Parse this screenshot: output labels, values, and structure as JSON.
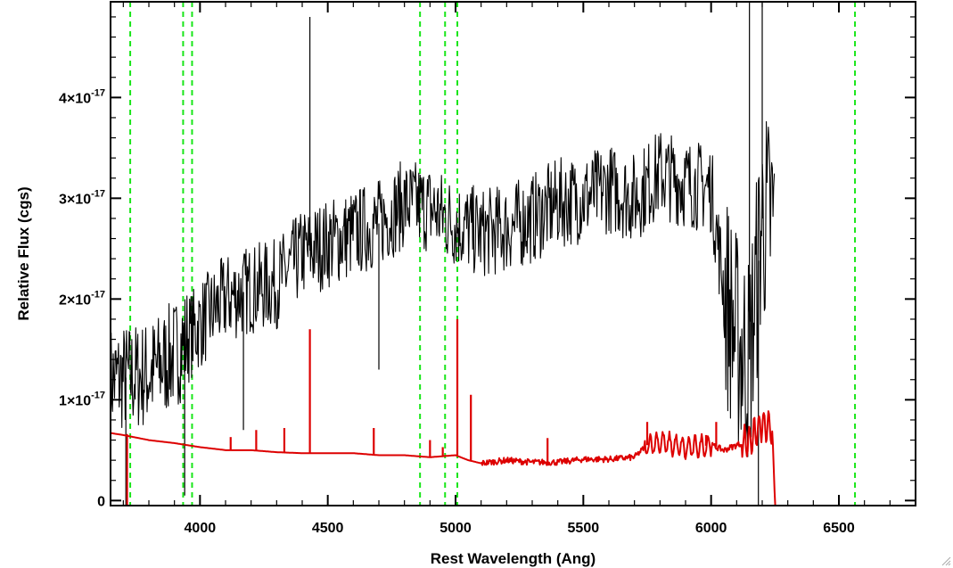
{
  "chart_data": {
    "type": "line",
    "title": "",
    "xlabel": "Rest Wavelength (Ang)",
    "ylabel": "Relative Flux (cgs)",
    "xlim": [
      3650,
      6800
    ],
    "ylim": [
      -5e-19,
      4.95e-17
    ],
    "x_ticks": [
      4000,
      4500,
      5000,
      5500,
      6000,
      6500
    ],
    "x_tick_labels": [
      "4000",
      "4500",
      "5000",
      "5500",
      "6000",
      "6500"
    ],
    "y_ticks": [
      0,
      1e-17,
      2e-17,
      3e-17,
      4e-17
    ],
    "y_tick_labels": [
      {
        "base": "0",
        "exp": ""
      },
      {
        "base": "1×10",
        "exp": "-17"
      },
      {
        "base": "2×10",
        "exp": "-17"
      },
      {
        "base": "3×10",
        "exp": "-17"
      },
      {
        "base": "4×10",
        "exp": "-17"
      }
    ],
    "reference_lines_x": [
      3727,
      3934,
      3969,
      4861,
      4959,
      5007,
      6563
    ],
    "series": [
      {
        "role": "observed spectrum",
        "color": "#000000",
        "x_range": [
          3650,
          6250
        ],
        "trend": {
          "x": [
            3650,
            3800,
            3900,
            4000,
            4100,
            4200,
            4300,
            4400,
            4500,
            4600,
            4700,
            4800,
            4900,
            5000,
            5100,
            5200,
            5300,
            5400,
            5500,
            5600,
            5700,
            5800,
            5900,
            6000,
            6050,
            6100,
            6150,
            6200,
            6250
          ],
          "y": [
            1.2e-17,
            1.25e-17,
            1.45e-17,
            1.75e-17,
            2e-17,
            2.1e-17,
            2.15e-17,
            2.45e-17,
            2.55e-17,
            2.65e-17,
            2.75e-17,
            2.95e-17,
            2.9e-17,
            2.75e-17,
            2.65e-17,
            2.7e-17,
            2.8e-17,
            2.95e-17,
            3e-17,
            3.1e-17,
            3e-17,
            3.25e-17,
            3.15e-17,
            3.1e-17,
            2.1e-17,
            1.6e-17,
            1.4e-17,
            2.8e-17,
            2.8e-17
          ]
        },
        "spikes": [
          {
            "x": 4430,
            "y": 4.8e-17
          },
          {
            "x": 4170,
            "y": 7e-18
          },
          {
            "x": 4700,
            "y": 1.3e-17
          },
          {
            "x": 6150,
            "y": 5e-17
          },
          {
            "x": 6185,
            "y": -5e-19
          },
          {
            "x": 6200,
            "y": 4.95e-17
          },
          {
            "x": 3710,
            "y": -5e-19
          },
          {
            "x": 3940,
            "y": 5e-19
          }
        ]
      },
      {
        "role": "model spectrum",
        "color": "#dd0000",
        "x": [
          3650,
          3700,
          3800,
          3900,
          4000,
          4100,
          4200,
          4300,
          4400,
          4500,
          4600,
          4700,
          4800,
          4900,
          5000,
          5050,
          5100,
          5200,
          5300,
          5400,
          5500,
          5600,
          5700,
          5750,
          5800,
          5900,
          6000,
          6050,
          6100,
          6150,
          6200,
          6240,
          6250,
          6800
        ],
        "y": [
          6.7e-18,
          6.5e-18,
          6e-18,
          5.7e-18,
          5.3e-18,
          5e-18,
          5e-18,
          4.8e-18,
          4.7e-18,
          4.7e-18,
          4.7e-18,
          4.5e-18,
          4.5e-18,
          4.3e-18,
          4.5e-18,
          4e-18,
          3.7e-18,
          4e-18,
          3.8e-18,
          3.8e-18,
          4.1e-18,
          4.1e-18,
          4.3e-18,
          5.5e-18,
          5.8e-18,
          5.2e-18,
          5.5e-18,
          5e-18,
          5.5e-18,
          6e-18,
          7.5e-18,
          7e-18,
          -5e-19,
          -5e-19
        ],
        "emission_lines": [
          {
            "x": 4120,
            "y": 6.3e-18
          },
          {
            "x": 4220,
            "y": 7e-18
          },
          {
            "x": 4330,
            "y": 7.2e-18
          },
          {
            "x": 4430,
            "y": 1.7e-17
          },
          {
            "x": 4680,
            "y": 7.2e-18
          },
          {
            "x": 4900,
            "y": 6e-18
          },
          {
            "x": 4950,
            "y": 5.3e-18
          },
          {
            "x": 5007,
            "y": 1.8e-17
          },
          {
            "x": 5060,
            "y": 1.05e-17
          },
          {
            "x": 5360,
            "y": 6.2e-18
          },
          {
            "x": 5750,
            "y": 7.8e-18
          },
          {
            "x": 5980,
            "y": 6.5e-18
          },
          {
            "x": 6020,
            "y": 7.8e-18
          }
        ]
      }
    ],
    "grid": false,
    "legend": "none"
  }
}
